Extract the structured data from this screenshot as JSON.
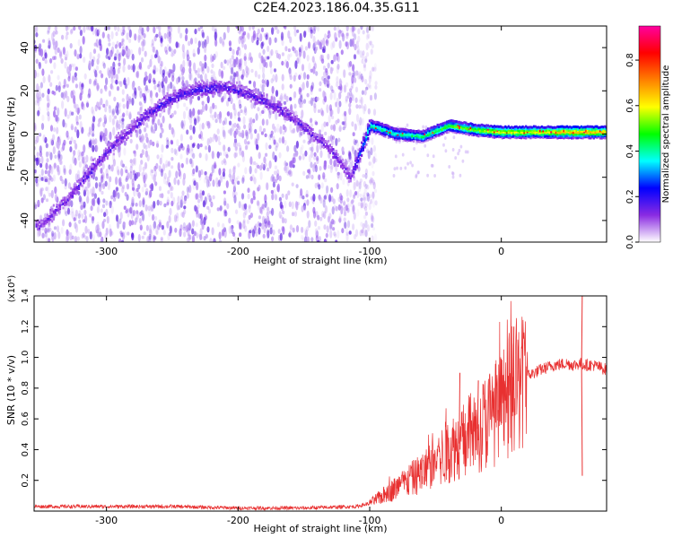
{
  "title": "C2E4.2023.186.04.35.G11",
  "chart_data": [
    {
      "type": "heatmap",
      "xlabel": "Height of straight line (km)",
      "ylabel": "Frequency (Hz)",
      "xlim": [
        -355,
        80
      ],
      "ylim": [
        -50,
        50
      ],
      "xticks": [
        -300,
        -200,
        -100,
        0
      ],
      "xtick_labels": [
        "-300",
        "-200",
        "-100",
        "0"
      ],
      "yticks": [
        -40,
        -20,
        0,
        20,
        40
      ],
      "ytick_labels": [
        "-40",
        "-20",
        "0",
        "20",
        "40"
      ],
      "colorbar": {
        "label": "Normalized spectral amplitude",
        "range": [
          0,
          0.95
        ],
        "ticks": [
          0.0,
          0.2,
          0.4,
          0.6,
          0.8
        ],
        "tick_labels": [
          "0.0",
          "0.2",
          "0.4",
          "0.6",
          "0.8"
        ],
        "colormap": [
          "#ffffff",
          "#8a2be2",
          "#0000ff",
          "#00ffff",
          "#00ff00",
          "#ffff00",
          "#ff8000",
          "#ff0000",
          "#ff00a0"
        ]
      },
      "ridge": {
        "x": [
          -350,
          -330,
          -310,
          -290,
          -270,
          -250,
          -230,
          -210,
          -190,
          -170,
          -150,
          -130,
          -115,
          -100,
          -80,
          -60,
          -40,
          -20,
          0,
          20,
          40,
          60,
          80
        ],
        "y": [
          -42,
          -30,
          -15,
          -2,
          9,
          17,
          21,
          22,
          18,
          12,
          3,
          -7,
          -20,
          4,
          0,
          -1,
          4,
          2,
          1,
          1,
          1,
          1,
          1
        ],
        "amplitude": [
          0.15,
          0.15,
          0.18,
          0.15,
          0.2,
          0.2,
          0.22,
          0.2,
          0.18,
          0.18,
          0.16,
          0.15,
          0.15,
          0.45,
          0.45,
          0.5,
          0.55,
          0.6,
          0.65,
          0.65,
          0.7,
          0.75,
          0.7
        ]
      },
      "noise_region_x": [
        -355,
        -95
      ]
    },
    {
      "type": "line",
      "xlabel": "Height of straight line (km)",
      "ylabel": "SNR (10 * v/v)",
      "y_multiplier_label": "(x10⁴)",
      "xlim": [
        -355,
        80
      ],
      "ylim": [
        0,
        1.4
      ],
      "xticks": [
        -300,
        -200,
        -100,
        0
      ],
      "xtick_labels": [
        "-300",
        "-200",
        "-100",
        "0"
      ],
      "yticks": [
        0.2,
        0.4,
        0.6,
        0.8,
        1.0,
        1.2,
        1.4
      ],
      "ytick_labels": [
        "0.2",
        "0.4",
        "0.6",
        "0.8",
        "1.0",
        "1.2",
        "1.4"
      ],
      "series": [
        {
          "color": "#e83030",
          "x": [
            -355,
            -300,
            -250,
            -200,
            -150,
            -110,
            -100,
            -90,
            -80,
            -70,
            -60,
            -50,
            -40,
            -30,
            -20,
            -10,
            0,
            10,
            20,
            30,
            40,
            50,
            55,
            60,
            65,
            70,
            80
          ],
          "y": [
            0.03,
            0.03,
            0.03,
            0.02,
            0.02,
            0.03,
            0.05,
            0.1,
            0.15,
            0.2,
            0.25,
            0.32,
            0.4,
            0.45,
            0.52,
            0.6,
            0.68,
            0.8,
            0.88,
            0.92,
            0.95,
            0.96,
            0.95,
            0.96,
            0.95,
            0.95,
            0.92
          ],
          "spikes": [
            {
              "x": 9,
              "y": 1.2
            },
            {
              "x": 61,
              "y": 1.45
            },
            {
              "x": 61,
              "y": 0.23
            },
            {
              "x": -32,
              "y": 0.9
            },
            {
              "x": -18,
              "y": 0.85
            }
          ]
        }
      ]
    }
  ]
}
